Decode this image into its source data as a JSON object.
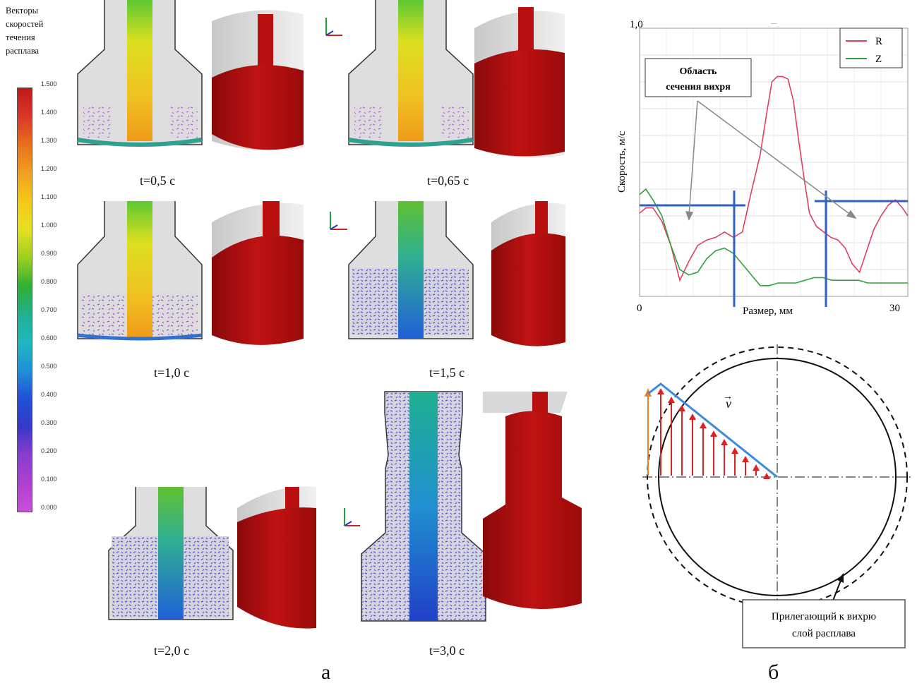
{
  "legend": {
    "title": "Векторы скоростей течения расплава",
    "ticks": [
      "1.500",
      "1.400",
      "1.300",
      "1.200",
      "1.100",
      "1.000",
      "0.900",
      "0.800",
      "0.700",
      "0.600",
      "0.500",
      "0.400",
      "0.300",
      "0.200",
      "0.100",
      "0.000"
    ],
    "colors": [
      "#c01818",
      "#d8382a",
      "#e8701c",
      "#f0a020",
      "#f5c818",
      "#e8e020",
      "#9cd020",
      "#30b030",
      "#20b090",
      "#20b8c0",
      "#2090d8",
      "#2050d8",
      "#3838c8",
      "#8a3cd0",
      "#b040d0",
      "#c850d8"
    ]
  },
  "time_labels": [
    "t=0,5 с",
    "t=0,65 с",
    "t=1,0 с",
    "t=1,5 с",
    "t=2,0 с",
    "t=3,0 с"
  ],
  "panel_labels": {
    "a": "а",
    "b": "б"
  },
  "graph": {
    "y_top_label": "1,0",
    "ylabel": "Скорость, м/с",
    "xlabel": "Размер, мм",
    "x_min_label": "0",
    "x_max_label": "30",
    "annotation": "Область сечения вихря",
    "top_marker": "—",
    "legend": [
      {
        "name": "R",
        "color": "#e04060"
      },
      {
        "name": "Z",
        "color": "#30a040"
      }
    ]
  },
  "chart_data": {
    "type": "line",
    "xlabel": "Размер, мм",
    "ylabel": "Скорость, м/с",
    "xlim": [
      0,
      30
    ],
    "ylim": [
      0,
      1.0
    ],
    "series": [
      {
        "name": "R",
        "color": "#e04060",
        "x": [
          0,
          0.7,
          1.5,
          2.5,
          3.5,
          4.5,
          5.5,
          6.5,
          7.5,
          8.5,
          9.5,
          10.5,
          11.5,
          12.5,
          13.5,
          14.2,
          14.8,
          15.4,
          16,
          16.6,
          17.2,
          17.8,
          18.4,
          19,
          19.8,
          20.6,
          21.4,
          22.2,
          23,
          23.8,
          24.6,
          25.4,
          26.2,
          27,
          27.8,
          28.6,
          29.4,
          30
        ],
        "y": [
          0.31,
          0.33,
          0.33,
          0.28,
          0.19,
          0.06,
          0.13,
          0.19,
          0.21,
          0.22,
          0.24,
          0.22,
          0.24,
          0.39,
          0.53,
          0.68,
          0.8,
          0.82,
          0.82,
          0.81,
          0.73,
          0.58,
          0.44,
          0.31,
          0.26,
          0.24,
          0.22,
          0.21,
          0.18,
          0.12,
          0.09,
          0.17,
          0.25,
          0.3,
          0.34,
          0.36,
          0.33,
          0.3
        ]
      },
      {
        "name": "Z",
        "color": "#30a040",
        "x": [
          0,
          0.7,
          1.5,
          2.5,
          3.5,
          4.5,
          5.5,
          6.5,
          7.5,
          8.5,
          9.5,
          10.5,
          11.5,
          12.5,
          13.5,
          14.5,
          15.5,
          16.5,
          17.5,
          18.5,
          19.5,
          20.5,
          21.5,
          22.5,
          23.5,
          24.5,
          25.5,
          26.5,
          27.5,
          28.5,
          29.5,
          30
        ],
        "y": [
          0.38,
          0.4,
          0.36,
          0.3,
          0.19,
          0.1,
          0.08,
          0.09,
          0.14,
          0.17,
          0.18,
          0.16,
          0.12,
          0.08,
          0.04,
          0.04,
          0.05,
          0.05,
          0.05,
          0.06,
          0.07,
          0.07,
          0.06,
          0.06,
          0.06,
          0.06,
          0.05,
          0.05,
          0.05,
          0.05,
          0.05,
          0.05
        ]
      }
    ]
  },
  "circle_diagram": {
    "vector_label": "v",
    "caption": "Прилегающий к вихрю слой расплава"
  }
}
